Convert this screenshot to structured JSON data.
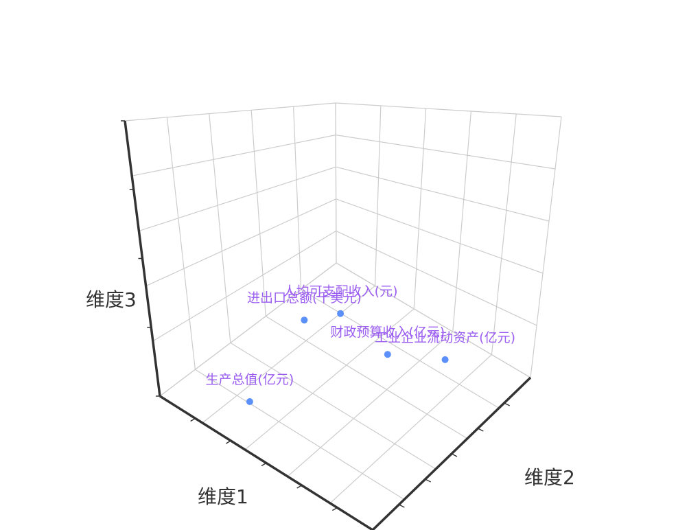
{
  "chart_data": {
    "type": "scatter3d",
    "xlabel": "维度1",
    "ylabel": "维度2",
    "zlabel": "维度3",
    "xlim": [
      0,
      1
    ],
    "ylim": [
      0,
      1
    ],
    "zlim": [
      0,
      1
    ],
    "grid": true,
    "points": [
      {
        "label": "生产总值(亿元)",
        "x": 0.31,
        "y": 0.14,
        "z": 0.06
      },
      {
        "label": "进出口总额(千美元)",
        "x": 0.2,
        "y": 0.59,
        "z": 0.08
      },
      {
        "label": "人均可支配收入(元)",
        "x": 0.26,
        "y": 0.73,
        "z": 0.06
      },
      {
        "label": "财政预算收入(亿元)",
        "x": 0.53,
        "y": 0.69,
        "z": 0.05
      },
      {
        "label": "工业企业流动资产(亿元)",
        "x": 0.72,
        "y": 0.81,
        "z": 0.05
      }
    ],
    "colors": {
      "point": "#5b8ff9",
      "label": "#9b5ef0",
      "grid": "#cccccc",
      "axis": "#333333"
    }
  }
}
